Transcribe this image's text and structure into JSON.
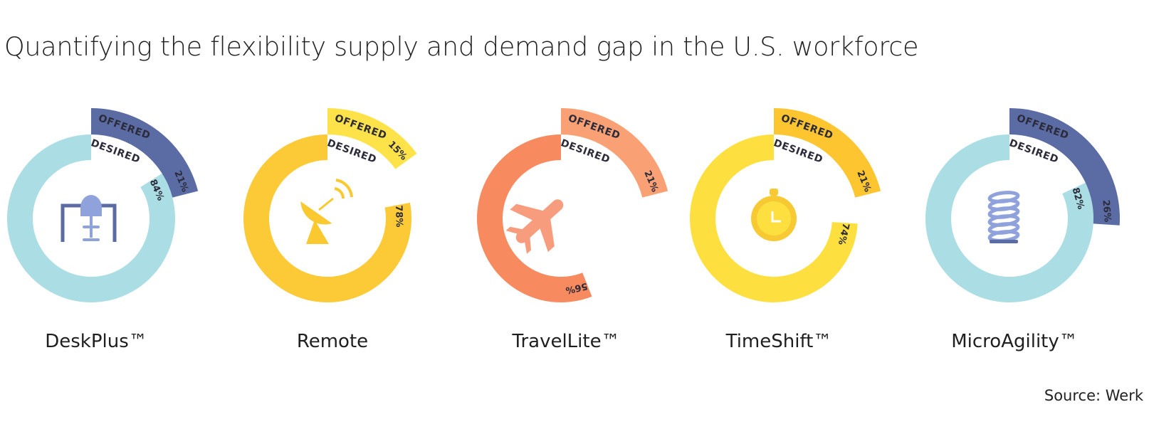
{
  "title": "Quantifying the flexibility supply and demand gap in the U.S. workforce",
  "source": "Source: Werk",
  "chart_data": {
    "type": "radial-bar",
    "title": "Quantifying the flexibility supply and demand gap in the U.S. workforce",
    "ring_labels": {
      "offered": "OFFERED",
      "desired": "DESIRED"
    },
    "categories": [
      "DeskPlus™",
      "Remote",
      "TravelLite™",
      "TimeShift™",
      "MicroAgility™"
    ],
    "series": [
      {
        "name": "DESIRED",
        "values": [
          84,
          78,
          56,
          74,
          82
        ]
      },
      {
        "name": "OFFERED",
        "values": [
          21,
          15,
          21,
          21,
          26
        ]
      }
    ],
    "value_labels": {
      "desired": [
        "84%",
        "78%",
        "56%",
        "74%",
        "82%"
      ],
      "offered": [
        "21%",
        "15%",
        "21%",
        "21%",
        "26%"
      ]
    },
    "colors": {
      "DeskPlus™": {
        "desired": "#aadee4",
        "offered": "#5b6ba3",
        "icon": "#8fa2dc"
      },
      "Remote": {
        "desired": "#fdca37",
        "offered": "#fde24a",
        "icon": "#f9c92f"
      },
      "TravelLite™": {
        "desired": "#f88a60",
        "offered": "#f9a074",
        "icon": "#f79c7c"
      },
      "TimeShift™": {
        "desired": "#fde03f",
        "offered": "#fdc52f",
        "icon": "#f7c932"
      },
      "MicroAgility™": {
        "desired": "#aadee4",
        "offered": "#5b6ba3",
        "icon": "#8fa2dc"
      }
    },
    "icons": [
      "desk-icon",
      "satellite-dish-icon",
      "airplane-icon",
      "stopwatch-icon",
      "coil-spring-icon"
    ]
  }
}
